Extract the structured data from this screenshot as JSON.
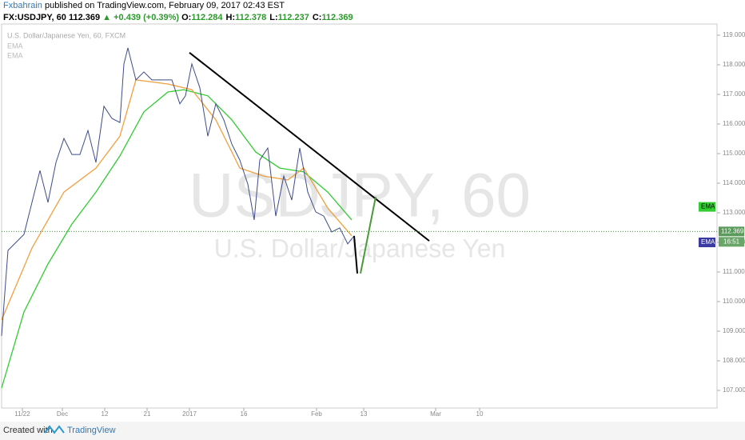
{
  "header": {
    "author": "Fxbahrain",
    "published": "published on TradingView.com, February 09, 2017 02:43 EST",
    "symbol": "FX:USDJPY, 60",
    "last": "112.369",
    "change": "▲ +0.439 (+0.39%)",
    "ohlc": [
      [
        "O:",
        "112.284"
      ],
      [
        "H:",
        "112.378"
      ],
      [
        "L:",
        "112.237"
      ],
      [
        "C:",
        "112.369"
      ]
    ]
  },
  "footer": {
    "created": "Created with",
    "brand": "TradingView"
  },
  "chart_data": {
    "type": "line",
    "title": "U.S. Dollar/Japanese Yen, 60, FXCM",
    "watermark": [
      "USDJPY, 60",
      "U.S. Dollar/Japanese Yen"
    ],
    "xlim": [
      0,
      895
    ],
    "ylim": [
      106.405,
      119.378
    ],
    "yticks": [
      {
        "value": 107,
        "label": "107.000"
      },
      {
        "value": 108,
        "label": "108.000"
      },
      {
        "value": 109,
        "label": "109.000"
      },
      {
        "value": 110,
        "label": "110.000"
      },
      {
        "value": 111,
        "label": "111.000"
      },
      {
        "value": 112,
        "label": "112.000"
      },
      {
        "value": 113,
        "label": "113.000"
      },
      {
        "value": 114,
        "label": "114.000"
      },
      {
        "value": 115,
        "label": "115.000"
      },
      {
        "value": 116,
        "label": "116.000"
      },
      {
        "value": 117,
        "label": "117.000"
      },
      {
        "value": 118,
        "label": "118.000"
      },
      {
        "value": 119,
        "label": "119.000"
      }
    ],
    "xticks": [
      {
        "value": 26,
        "label": "11/22"
      },
      {
        "value": 76,
        "label": "Dec"
      },
      {
        "value": 129,
        "label": "12"
      },
      {
        "value": 182,
        "label": "21"
      },
      {
        "value": 235,
        "label": "2017"
      },
      {
        "value": 303,
        "label": "16"
      },
      {
        "value": 394,
        "label": "Feb"
      },
      {
        "value": 453,
        "label": "13"
      },
      {
        "value": 543,
        "label": "Mar"
      },
      {
        "value": 598,
        "label": "10"
      }
    ],
    "series": [
      {
        "color": "#3f4b8c",
        "x": [
          0,
          8,
          18,
          28,
          38,
          48,
          58,
          68,
          78,
          88,
          98,
          108,
          118,
          128,
          138,
          148,
          153,
          158,
          168,
          178,
          188,
          198,
          213,
          223,
          230,
          238,
          248,
          258,
          268,
          278,
          288,
          298,
          308,
          316,
          323,
          333,
          343,
          353,
          363,
          373,
          383,
          393,
          403,
          413,
          423,
          433,
          441
        ],
        "values": [
          108.84,
          111.73,
          112.0,
          112.27,
          113.35,
          114.43,
          113.35,
          114.7,
          115.51,
          114.97,
          114.97,
          115.78,
          114.7,
          116.6,
          116.19,
          116.05,
          118.03,
          118.57,
          117.49,
          117.76,
          117.49,
          117.49,
          117.49,
          116.68,
          116.95,
          118.03,
          117.22,
          115.59,
          116.68,
          116.14,
          115.32,
          114.78,
          113.97,
          112.76,
          114.78,
          115.19,
          112.89,
          114.24,
          113.43,
          115.19,
          113.7,
          113.03,
          112.89,
          112.35,
          112.49,
          111.95,
          112.22
        ]
      },
      {
        "name": "EMA",
        "color": "#f0a040",
        "x": [
          0,
          38,
          78,
          118,
          148,
          168,
          208,
          238,
          268,
          298,
          328,
          358,
          378,
          408,
          438
        ],
        "values": [
          109.38,
          111.81,
          113.7,
          114.51,
          115.59,
          117.49,
          117.35,
          117.16,
          116.14,
          114.51,
          114.24,
          114.11,
          114.51,
          113.16,
          112.22
        ]
      },
      {
        "name": "EMA",
        "color": "#33cc33",
        "x": [
          0,
          28,
          58,
          88,
          118,
          148,
          178,
          208,
          228,
          258,
          288,
          318,
          348,
          378,
          408,
          438
        ],
        "values": [
          107.08,
          109.65,
          111.27,
          112.62,
          113.7,
          114.92,
          116.41,
          117.08,
          117.16,
          116.95,
          116.14,
          115.05,
          114.51,
          114.38,
          113.7,
          112.76
        ]
      }
    ],
    "annotations": [
      {
        "color": "#000000",
        "x": [
          235,
          535
        ],
        "y": [
          118.41,
          112.05
        ]
      },
      {
        "color": "#000000",
        "x": [
          441,
          445
        ],
        "y": [
          112.22,
          110.95
        ]
      },
      {
        "color": "#4a9a3a",
        "x": [
          449,
          468
        ],
        "y": [
          110.95,
          113.54
        ]
      }
    ],
    "last_price": 112.369,
    "countdown": "16:51",
    "ema_tags": [
      113.2,
      112.0
    ]
  }
}
